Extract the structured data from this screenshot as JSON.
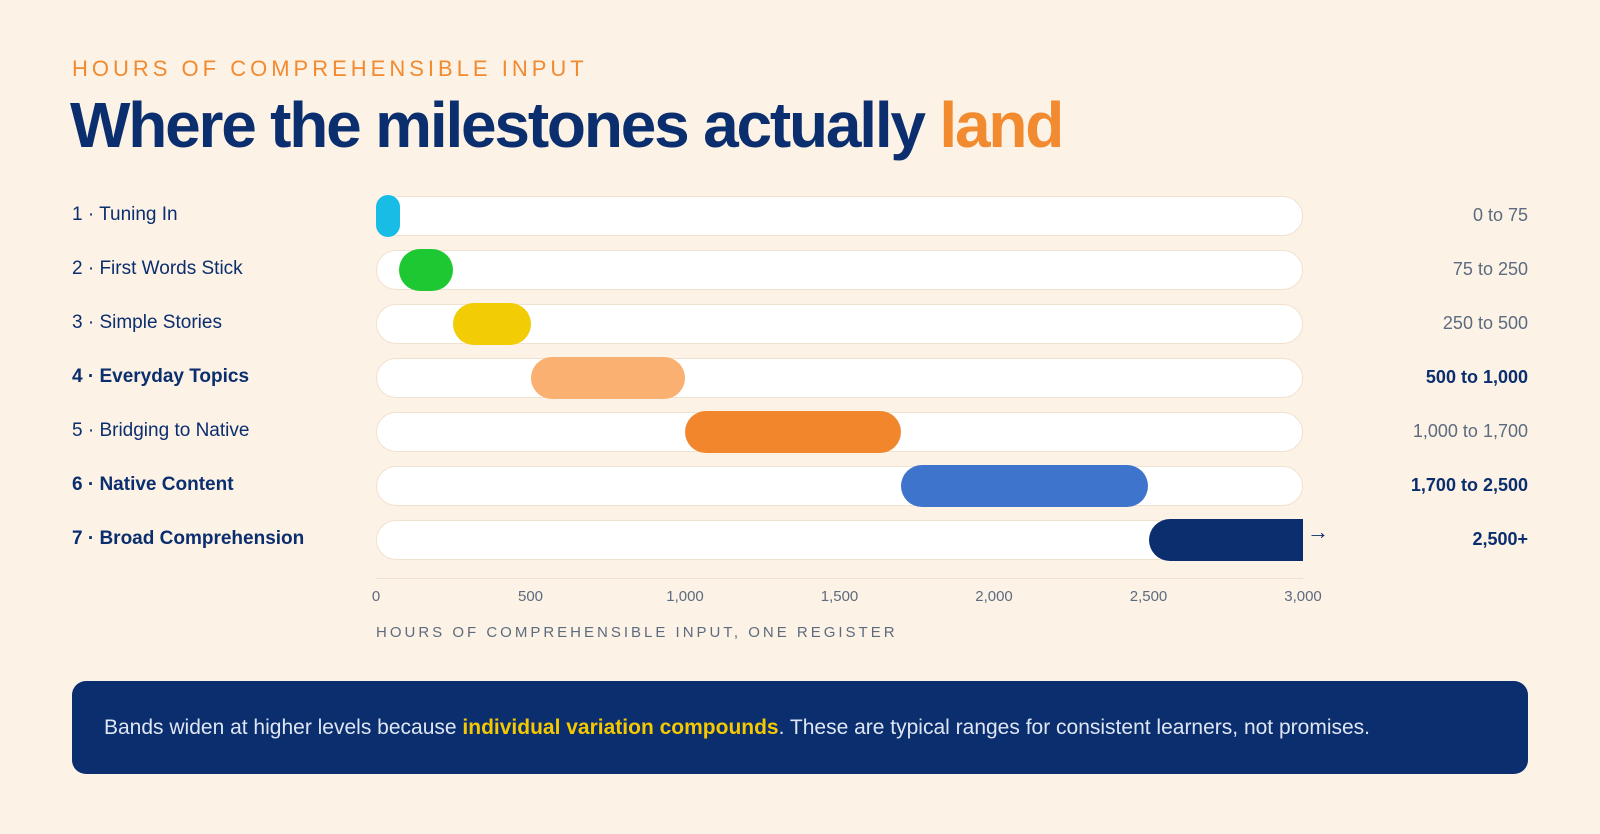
{
  "eyebrow": "HOURS OF COMPREHENSIBLE INPUT",
  "title": {
    "main": "Where the milestones actually ",
    "accent": "land"
  },
  "chart_data": {
    "type": "bar",
    "subtype": "range",
    "xlabel": "HOURS OF COMPREHENSIBLE INPUT, ONE REGISTER",
    "xlim": [
      0,
      3000
    ],
    "xticks": [
      0,
      500,
      1000,
      1500,
      2000,
      2500,
      3000
    ],
    "xtick_labels": [
      "0",
      "500",
      "1,000",
      "1,500",
      "2,000",
      "2,500",
      "3,000"
    ],
    "rows": [
      {
        "label": "1 · Tuning In",
        "range_label": "0 to 75",
        "start": 0,
        "end": 75,
        "color": "#18bde6",
        "bold": false
      },
      {
        "label": "2 · First Words Stick",
        "range_label": "75 to 250",
        "start": 75,
        "end": 250,
        "color": "#1ec832",
        "bold": false
      },
      {
        "label": "3 · Simple Stories",
        "range_label": "250 to 500",
        "start": 250,
        "end": 500,
        "color": "#f2cc05",
        "bold": false
      },
      {
        "label": "4 · Everyday Topics",
        "range_label": "500 to 1,000",
        "start": 500,
        "end": 1000,
        "color": "#f9b070",
        "bold": true
      },
      {
        "label": "5 · Bridging to Native",
        "range_label": "1,000 to 1,700",
        "start": 1000,
        "end": 1700,
        "color": "#f2862c",
        "bold": false
      },
      {
        "label": "6 · Native Content",
        "range_label": "1,700 to 2,500",
        "start": 1700,
        "end": 2500,
        "color": "#3e74cc",
        "bold": true
      },
      {
        "label": "7 · Broad Comprehension",
        "range_label": "2,500+",
        "start": 2500,
        "end": 3000,
        "color": "#0b2e6e",
        "bold": true,
        "open_ended": true,
        "arrow": "→"
      }
    ]
  },
  "note": {
    "before": "Bands widen at higher levels because ",
    "highlight": "individual variation compounds",
    "after": ". These are typical ranges for consistent learners, not promises."
  },
  "colors": {
    "background": "#fcf2e6",
    "navy": "#0b2e6e",
    "orange": "#f28a2f",
    "highlight": "#f5c800"
  }
}
